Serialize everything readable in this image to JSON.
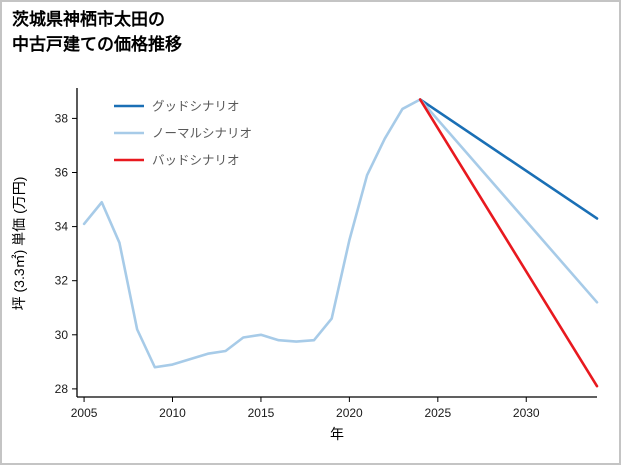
{
  "header": {
    "line1": "茨城県神栖市太田の",
    "line2": "中古戸建ての価格推移"
  },
  "chart_data": {
    "type": "line",
    "title": "茨城県神栖市太田の中古戸建ての価格推移",
    "xlabel": "年",
    "ylabel": "坪 (3.3㎡) 単価 (万円)",
    "xlim": [
      2004.6,
      2034.0
    ],
    "ylim": [
      27.7,
      39.05
    ],
    "xticks": [
      2005,
      2010,
      2015,
      2020,
      2025,
      2030
    ],
    "yticks": [
      28,
      30,
      32,
      34,
      36,
      38
    ],
    "grid": false,
    "legend_position": "upper left",
    "series": [
      {
        "key": "good-scenario",
        "name": "グッドシナリオ",
        "color": "#1a6fb5",
        "x": [
          2024,
          2034
        ],
        "y": [
          38.7,
          34.3
        ]
      },
      {
        "key": "normal-scenario",
        "name": "ノーマルシナリオ",
        "color": "#a7cbe8",
        "x": [
          2005,
          2006,
          2007,
          2008,
          2009,
          2010,
          2011,
          2012,
          2013,
          2014,
          2015,
          2016,
          2017,
          2018,
          2019,
          2020,
          2021,
          2022,
          2023,
          2024,
          2034
        ],
        "y": [
          34.1,
          34.9,
          33.4,
          30.2,
          28.8,
          28.9,
          29.1,
          29.3,
          29.4,
          29.9,
          30.0,
          29.8,
          29.75,
          29.8,
          30.6,
          33.5,
          35.9,
          37.25,
          38.35,
          38.7,
          31.2
        ]
      },
      {
        "key": "bad-scenario",
        "name": "バッドシナリオ",
        "color": "#e8191f",
        "x": [
          2024,
          2034
        ],
        "y": [
          38.7,
          28.1
        ]
      }
    ]
  }
}
